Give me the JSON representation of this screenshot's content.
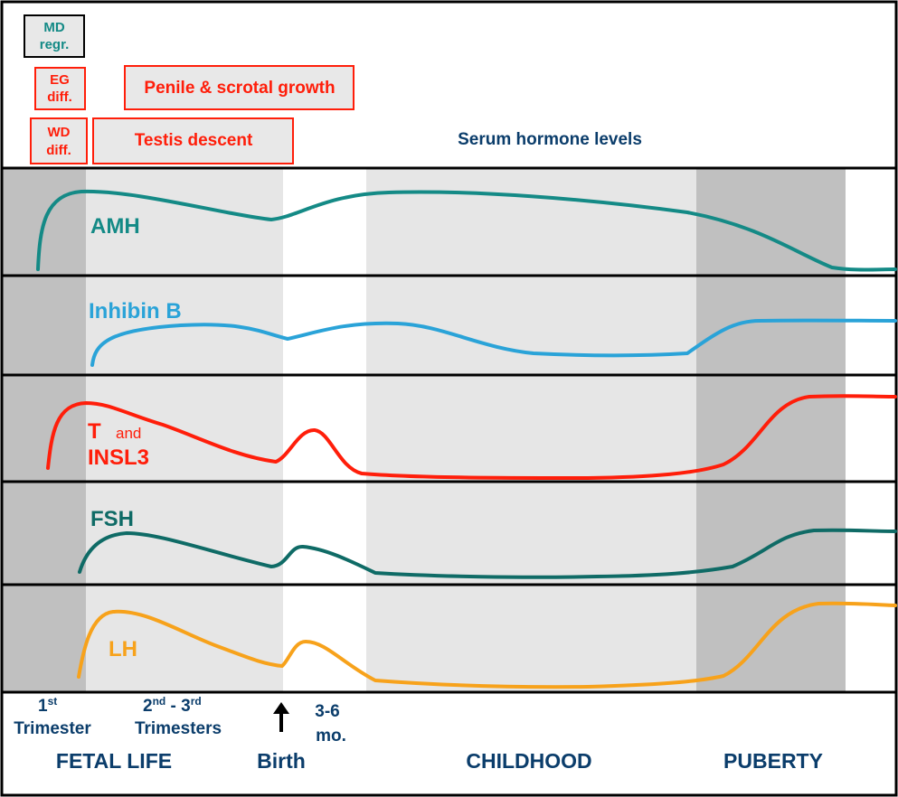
{
  "colors": {
    "dark_band": "#c0c0c0",
    "light_band": "#e6e6e6",
    "border": "#000000",
    "navy": "#0b3d6b",
    "teal": "#148a86",
    "dark_teal": "#0f6b66",
    "blue": "#2aa3d8",
    "red": "#ff1e0a",
    "orange": "#f7a21b",
    "box_fill": "#e8e8e8"
  },
  "events": {
    "md": {
      "line1": "MD",
      "line2": "regr."
    },
    "eg": {
      "line1": "EG",
      "line2": "diff."
    },
    "wd": {
      "line1": "WD",
      "line2": "diff."
    },
    "penile": "Penile & scrotal growth",
    "testis": "Testis descent",
    "serum_title": "Serum  hormone levels"
  },
  "hormones": {
    "amh": "AMH",
    "inhibin": "Inhibin B",
    "t": "T",
    "and": "and",
    "insl3": "INSL3",
    "fsh": "FSH",
    "lh": "LH"
  },
  "timeline": {
    "first_num": "1",
    "first_sup": "st",
    "first_word": "Trimester",
    "second_num": "2",
    "second_sup": "nd",
    "dash": " - 3",
    "third_sup": "rd",
    "second_word": "Trimesters",
    "months_top": "3-6",
    "months_bottom": "mo.",
    "fetal": "FETAL LIFE",
    "birth": "Birth",
    "childhood": "CHILDHOOD",
    "puberty": "PUBERTY"
  }
}
